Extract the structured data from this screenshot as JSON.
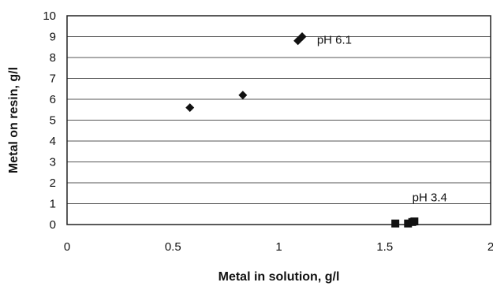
{
  "chart_data": {
    "type": "scatter",
    "title": "",
    "xlabel": "Metal in solution, g/l",
    "ylabel": "Metal on resin, g/l",
    "xlim": [
      0,
      2
    ],
    "ylim": [
      0,
      10
    ],
    "x_ticks": [
      "0",
      "0.5",
      "1",
      "1.5",
      "2"
    ],
    "y_ticks": [
      "0",
      "1",
      "2",
      "3",
      "4",
      "5",
      "6",
      "7",
      "8",
      "9",
      "10"
    ],
    "grid": "horizontal",
    "legend": "none",
    "series": [
      {
        "marker": "diamond",
        "points": [
          {
            "x": 0.58,
            "y": 5.6
          },
          {
            "x": 0.83,
            "y": 6.2
          },
          {
            "x": 1.09,
            "y": 8.8
          },
          {
            "x": 1.11,
            "y": 9.0
          }
        ]
      },
      {
        "marker": "square",
        "points": [
          {
            "x": 1.55,
            "y": 0.05
          },
          {
            "x": 1.61,
            "y": 0.05
          },
          {
            "x": 1.63,
            "y": 0.12
          },
          {
            "x": 1.64,
            "y": 0.15
          }
        ]
      }
    ],
    "annotations": [
      {
        "text": "pH 6.1",
        "x": 1.18,
        "y": 8.85
      },
      {
        "text": "pH 3.4",
        "x": 1.63,
        "y": 1.3
      }
    ]
  }
}
